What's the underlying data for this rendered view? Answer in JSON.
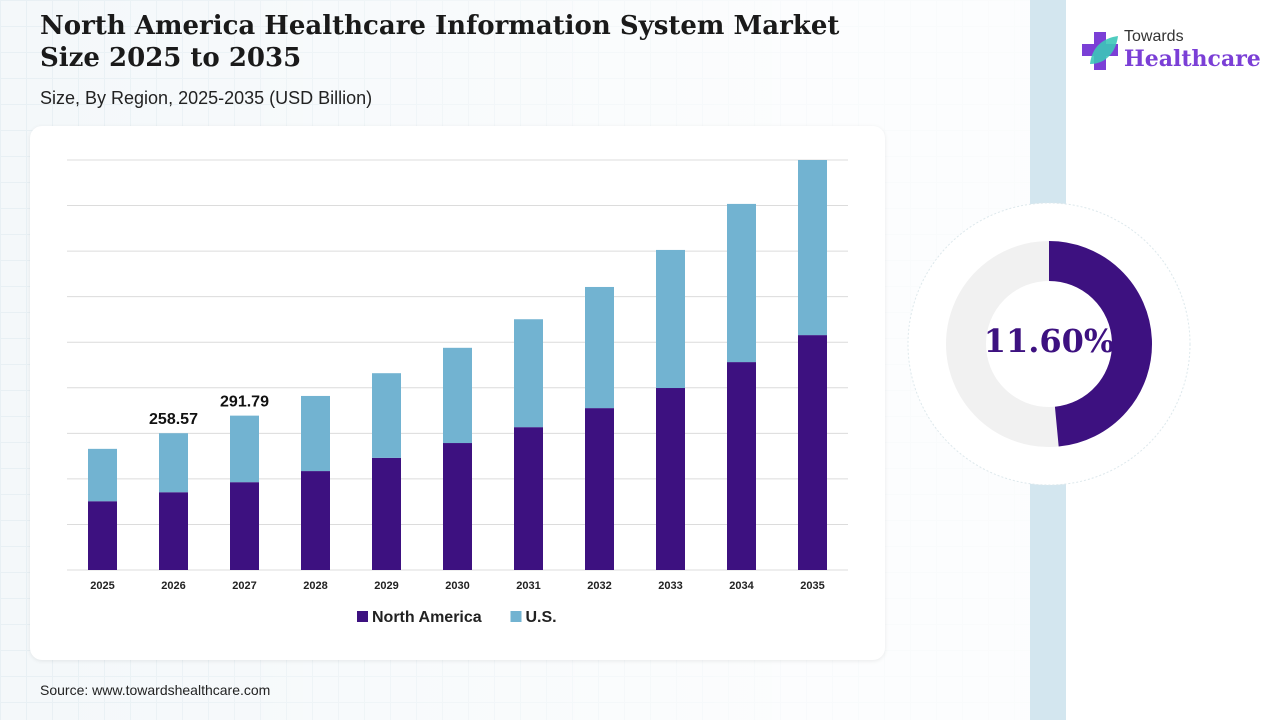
{
  "title": "North America Healthcare Information System Market Size 2025 to 2035",
  "subtitle": "Size, By Region, 2025-2035 (USD Billion)",
  "source": "Source: www.towardshealthcare.com",
  "logo": {
    "line1": "Towards",
    "line2": "Healthcare"
  },
  "cagr": {
    "label": "11.60%",
    "arc_fraction": 0.485,
    "color": "#3d1180",
    "track": "#f1f1f1"
  },
  "chart_data": {
    "type": "bar",
    "stacked": true,
    "title": "North America Healthcare Information System Market Size 2025 to 2035",
    "xlabel": "",
    "ylabel": "USD Billion",
    "ylim": [
      0,
      775
    ],
    "grid": true,
    "legend": "bottom",
    "categories": [
      "2025",
      "2026",
      "2027",
      "2028",
      "2029",
      "2030",
      "2031",
      "2032",
      "2033",
      "2034",
      "2035"
    ],
    "series": [
      {
        "name": "North America",
        "color": "#3d1180",
        "values": [
          130,
          147,
          166,
          187,
          212,
          240,
          270,
          306,
          344,
          393,
          444
        ]
      },
      {
        "name": "U.S.",
        "color": "#72b3d1",
        "values": [
          99,
          111.57,
          125.79,
          142,
          160,
          180,
          204,
          229,
          261,
          299,
          331
        ]
      }
    ],
    "data_labels": [
      {
        "category": "2026",
        "text": "258.57"
      },
      {
        "category": "2027",
        "text": "291.79"
      }
    ]
  }
}
